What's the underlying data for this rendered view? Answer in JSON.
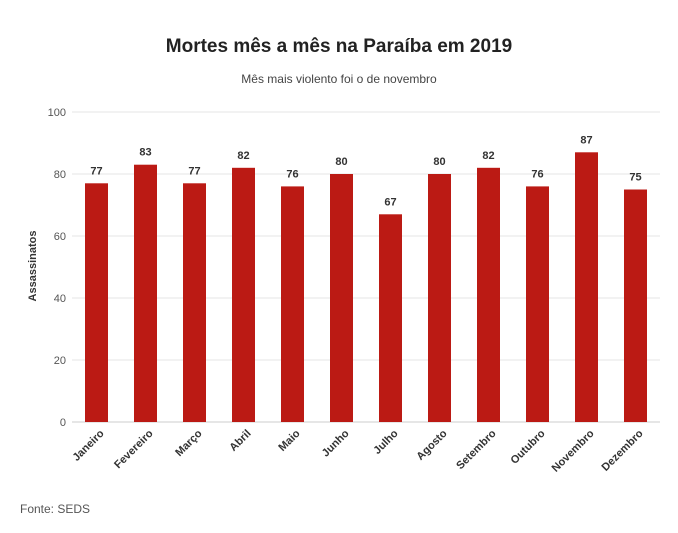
{
  "chart_data": {
    "type": "bar",
    "title": "Mortes mês a mês na Paraíba em 2019",
    "subtitle": "Mês mais violento foi o de novembro",
    "xlabel": "",
    "ylabel": "Assassinatos",
    "ylim": [
      0,
      100
    ],
    "yticks": [
      0,
      20,
      40,
      60,
      80,
      100
    ],
    "categories": [
      "Janeiro",
      "Fevereiro",
      "Março",
      "Abril",
      "Maio",
      "Junho",
      "Julho",
      "Agosto",
      "Setembro",
      "Outubro",
      "Novembro",
      "Dezembro"
    ],
    "values": [
      77,
      83,
      77,
      82,
      76,
      80,
      67,
      80,
      82,
      76,
      87,
      75
    ],
    "bar_color": "#bb1a14",
    "grid": true,
    "data_labels": true,
    "source": "Fonte: SEDS"
  }
}
